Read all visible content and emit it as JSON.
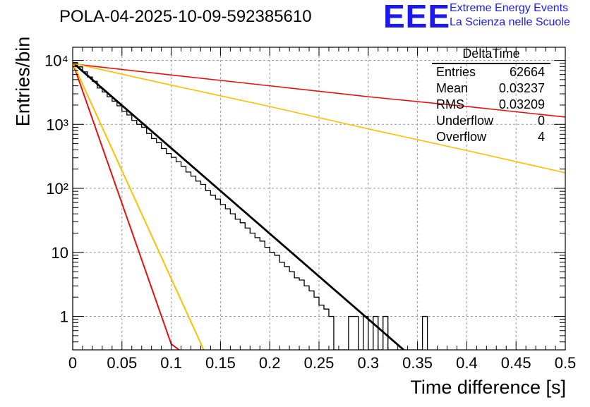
{
  "header": {
    "title": "POLA-04-2025-10-09-592385610",
    "logo_text": "EEE",
    "logo_line1": "Extreme Energy Events",
    "logo_line2": "La Scienza nelle Scuole"
  },
  "stats_box": {
    "title": "DeltaTime",
    "rows": [
      {
        "label": "Entries",
        "value": "62664"
      },
      {
        "label": "Mean",
        "value": "0.03237"
      },
      {
        "label": "RMS",
        "value": "0.03209"
      },
      {
        "label": "Underflow",
        "value": "0"
      },
      {
        "label": "Overflow",
        "value": "4"
      }
    ]
  },
  "chart_data": {
    "type": "line",
    "title": "POLA-04-2025-10-09-592385610",
    "xlabel": "Time difference [s]",
    "ylabel": "Entries/bin",
    "xlim": [
      0,
      0.5
    ],
    "ylim": [
      0.3,
      16000
    ],
    "yscale": "log",
    "grid": true,
    "x_ticks": [
      0,
      0.05,
      0.1,
      0.15,
      0.2,
      0.25,
      0.3,
      0.35,
      0.4,
      0.45,
      0.5
    ],
    "x_tick_labels": [
      "0",
      "0.05",
      "0.1",
      "0.15",
      "0.2",
      "0.25",
      "0.3",
      "0.35",
      "0.4",
      "0.45",
      "0.5"
    ],
    "y_ticks": [
      1,
      10,
      100,
      1000,
      10000
    ],
    "y_tick_labels": [
      "1",
      "10",
      "10²",
      "10³",
      "10⁴"
    ],
    "histogram": {
      "name": "DeltaTime",
      "color": "#000000",
      "bins": [
        [
          0.0,
          0.005,
          9200
        ],
        [
          0.005,
          0.01,
          7900
        ],
        [
          0.01,
          0.015,
          6600
        ],
        [
          0.015,
          0.02,
          5500
        ],
        [
          0.02,
          0.025,
          4700
        ],
        [
          0.025,
          0.03,
          3700
        ],
        [
          0.03,
          0.035,
          3200
        ],
        [
          0.035,
          0.04,
          2700
        ],
        [
          0.04,
          0.045,
          2300
        ],
        [
          0.045,
          0.05,
          1950
        ],
        [
          0.05,
          0.055,
          1600
        ],
        [
          0.055,
          0.06,
          1400
        ],
        [
          0.06,
          0.065,
          1150
        ],
        [
          0.065,
          0.07,
          1000
        ],
        [
          0.07,
          0.075,
          900
        ],
        [
          0.075,
          0.08,
          720
        ],
        [
          0.08,
          0.085,
          600
        ],
        [
          0.085,
          0.09,
          520
        ],
        [
          0.09,
          0.095,
          420
        ],
        [
          0.095,
          0.1,
          350
        ],
        [
          0.1,
          0.105,
          305
        ],
        [
          0.105,
          0.11,
          260
        ],
        [
          0.11,
          0.115,
          220
        ],
        [
          0.115,
          0.12,
          180
        ],
        [
          0.12,
          0.125,
          155
        ],
        [
          0.125,
          0.13,
          130
        ],
        [
          0.13,
          0.135,
          115
        ],
        [
          0.135,
          0.14,
          92
        ],
        [
          0.14,
          0.145,
          78
        ],
        [
          0.145,
          0.15,
          68
        ],
        [
          0.15,
          0.155,
          56
        ],
        [
          0.155,
          0.16,
          48
        ],
        [
          0.16,
          0.165,
          40
        ],
        [
          0.165,
          0.17,
          33
        ],
        [
          0.17,
          0.175,
          29
        ],
        [
          0.175,
          0.18,
          24
        ],
        [
          0.18,
          0.185,
          20
        ],
        [
          0.185,
          0.19,
          17
        ],
        [
          0.19,
          0.195,
          15
        ],
        [
          0.195,
          0.2,
          12
        ],
        [
          0.2,
          0.205,
          10
        ],
        [
          0.205,
          0.21,
          9
        ],
        [
          0.21,
          0.215,
          7
        ],
        [
          0.215,
          0.22,
          6
        ],
        [
          0.22,
          0.225,
          5
        ],
        [
          0.225,
          0.23,
          4
        ],
        [
          0.23,
          0.235,
          3.7
        ],
        [
          0.235,
          0.24,
          3
        ],
        [
          0.24,
          0.245,
          2.5
        ],
        [
          0.245,
          0.25,
          2
        ],
        [
          0.25,
          0.255,
          1.5
        ],
        [
          0.255,
          0.26,
          1.3
        ],
        [
          0.26,
          0.265,
          1
        ],
        [
          0.265,
          0.27,
          0.2
        ],
        [
          0.27,
          0.275,
          0.2
        ],
        [
          0.275,
          0.28,
          0.2
        ],
        [
          0.28,
          0.285,
          1
        ],
        [
          0.285,
          0.29,
          1
        ],
        [
          0.29,
          0.295,
          0.2
        ],
        [
          0.295,
          0.3,
          1
        ],
        [
          0.3,
          0.305,
          0.2
        ],
        [
          0.305,
          0.31,
          1
        ],
        [
          0.31,
          0.315,
          0.2
        ],
        [
          0.315,
          0.32,
          1
        ],
        [
          0.32,
          0.325,
          0.2
        ],
        [
          0.325,
          0.33,
          0.2
        ],
        [
          0.33,
          0.335,
          0.2
        ],
        [
          0.335,
          0.34,
          0.2
        ],
        [
          0.34,
          0.345,
          0.2
        ],
        [
          0.345,
          0.35,
          0.2
        ],
        [
          0.35,
          0.355,
          0.2
        ],
        [
          0.355,
          0.36,
          1
        ]
      ]
    },
    "series": [
      {
        "name": "fit",
        "color": "#000000",
        "width": 2.8,
        "x": [
          0,
          0.336
        ],
        "y": [
          9200,
          0.3
        ]
      },
      {
        "name": "red-slow",
        "color": "#e8100e",
        "width": 1.6,
        "x": [
          0,
          0.1,
          0.2,
          0.3,
          0.4,
          0.5
        ],
        "y": [
          8800,
          5900,
          4000,
          2700,
          1900,
          1300
        ]
      },
      {
        "name": "orange-slow",
        "color": "#ffbf00",
        "width": 1.6,
        "x": [
          0,
          0.1,
          0.2,
          0.3,
          0.4,
          0.5
        ],
        "y": [
          9000,
          4100,
          1900,
          850,
          390,
          175
        ]
      },
      {
        "name": "red-fast",
        "color": "#e8100e",
        "width": 2.0,
        "x": [
          0,
          0.1,
          0.108
        ],
        "y": [
          9200,
          0.37,
          0.3
        ]
      },
      {
        "name": "orange-fast",
        "color": "#ffbf00",
        "width": 2.0,
        "x": [
          0,
          0.133
        ],
        "y": [
          9200,
          0.3
        ]
      }
    ]
  }
}
